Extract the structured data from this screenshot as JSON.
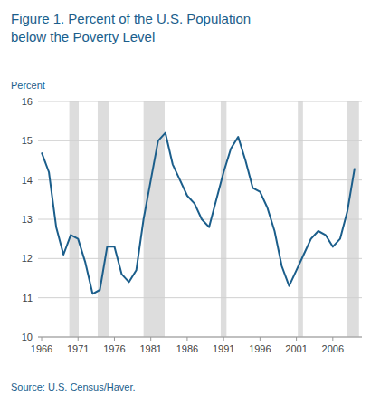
{
  "chart_data": {
    "type": "line",
    "title": "Figure 1. Percent of the U.S. Population",
    "subtitle": "below the Poverty Level",
    "y_label": "Percent",
    "source": "Source: U.S. Census/Haver.",
    "color": "#1b5e8b",
    "grid": true,
    "xlim": [
      1965.5,
      2010
    ],
    "ylim": [
      10,
      16
    ],
    "xticks": [
      1966,
      1971,
      1976,
      1981,
      1986,
      1991,
      1996,
      2001,
      2006
    ],
    "yticks": [
      10,
      11,
      12,
      13,
      14,
      15,
      16
    ],
    "recession_bands": [
      [
        1969.8,
        1971.1
      ],
      [
        1973.7,
        1975.3
      ],
      [
        1980.0,
        1982.9
      ],
      [
        1990.6,
        1991.4
      ],
      [
        2001.2,
        2001.9
      ],
      [
        2007.9,
        2009.6
      ]
    ],
    "x": [
      1966,
      1967,
      1968,
      1969,
      1970,
      1971,
      1972,
      1973,
      1974,
      1975,
      1976,
      1977,
      1978,
      1979,
      1980,
      1981,
      1982,
      1983,
      1984,
      1985,
      1986,
      1987,
      1988,
      1989,
      1990,
      1991,
      1992,
      1993,
      1994,
      1995,
      1996,
      1997,
      1998,
      1999,
      2000,
      2001,
      2002,
      2003,
      2004,
      2005,
      2006,
      2007,
      2008,
      2009
    ],
    "values": [
      14.7,
      14.2,
      12.8,
      12.1,
      12.6,
      12.5,
      11.9,
      11.1,
      11.2,
      12.3,
      12.3,
      11.6,
      11.4,
      11.7,
      13.0,
      14.0,
      15.0,
      15.2,
      14.4,
      14.0,
      13.6,
      13.4,
      13.0,
      12.8,
      13.5,
      14.2,
      14.8,
      15.1,
      14.5,
      13.8,
      13.7,
      13.3,
      12.7,
      11.8,
      11.3,
      11.7,
      12.1,
      12.5,
      12.7,
      12.6,
      12.3,
      12.5,
      13.2,
      14.3
    ]
  }
}
